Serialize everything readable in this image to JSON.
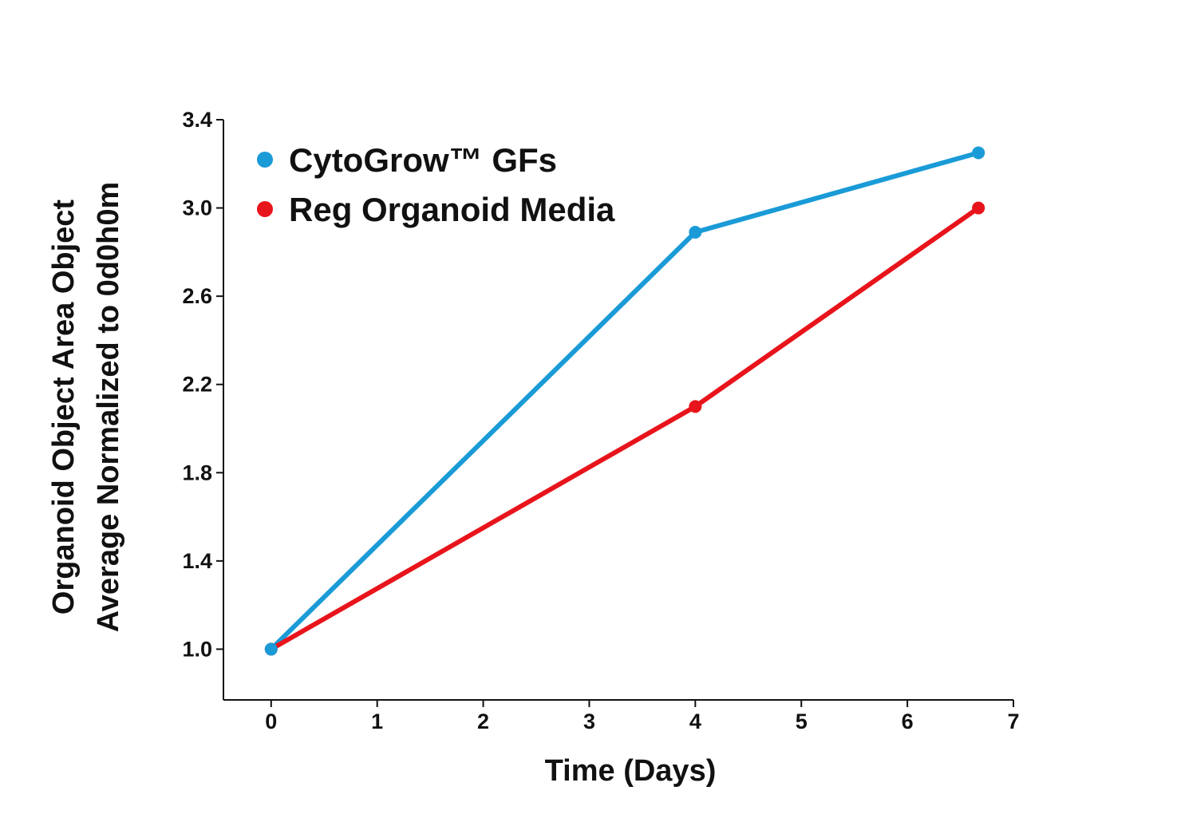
{
  "chart_data": {
    "type": "line",
    "title": "",
    "xlabel": "Time (Days)",
    "ylabel_lines": [
      "Organoid Object Area Object",
      "Average Normalized to 0d0h0m"
    ],
    "xlim": [
      -0.45,
      7
    ],
    "ylim": [
      0.77,
      3.4
    ],
    "xticks": [
      0,
      1,
      2,
      3,
      4,
      5,
      6,
      7
    ],
    "yticks": [
      1.0,
      1.4,
      1.8,
      2.2,
      2.6,
      3.0,
      3.4
    ],
    "ytick_labels": [
      "1.0",
      "1.4",
      "1.8",
      "2.2",
      "2.6",
      "3.0",
      "3.4"
    ],
    "grid": false,
    "legend_position": "top-left",
    "series": [
      {
        "name": "CytoGrow™ GFs",
        "color": "#1a9bd7",
        "x": [
          0,
          4,
          6.67
        ],
        "y": [
          1.0,
          2.89,
          3.25
        ]
      },
      {
        "name": "Reg Organoid Media",
        "color": "#e8141b",
        "x": [
          0,
          4,
          6.67
        ],
        "y": [
          1.0,
          2.1,
          3.0
        ]
      }
    ]
  }
}
